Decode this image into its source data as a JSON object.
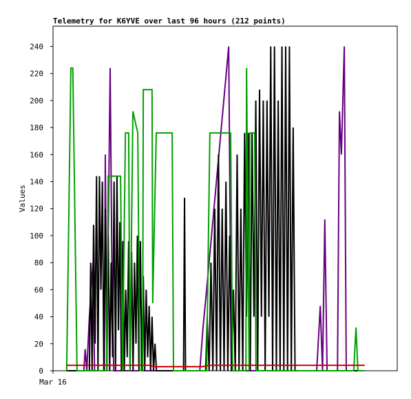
{
  "chart_data": {
    "type": "line",
    "title": "Telemetry for K6YVE over last 96 hours (212 points)",
    "y_label": "Values",
    "xlim": [
      0,
      106
    ],
    "xticks": [
      {
        "value": 0,
        "label": "Mar 16"
      }
    ],
    "ylim": [
      0,
      255
    ],
    "yticks": [
      0,
      20,
      40,
      60,
      80,
      100,
      120,
      140,
      160,
      180,
      200,
      220,
      240
    ],
    "grid": false,
    "series": [
      {
        "color": "#660080",
        "x": [
          9.5,
          9.9,
          10.4,
          11.2,
          12.3,
          12.8,
          15.8,
          16.1,
          16.6,
          17.0,
          17.6,
          18.2,
          18.7,
          45.2,
          46.2,
          47.3,
          54.1,
          54.9,
          81.2,
          82.3,
          83.0,
          83.7,
          84.4,
          87.6,
          88.2,
          88.8,
          89.7,
          90.3
        ],
        "values": [
          0,
          16,
          0,
          40,
          80,
          0,
          0,
          160,
          0,
          100,
          224,
          60,
          0,
          0,
          32,
          60,
          240,
          0,
          0,
          48,
          0,
          112,
          0,
          0,
          192,
          160,
          240,
          0
        ]
      },
      {
        "color": "#000000",
        "x": [
          4.2,
          11.2,
          11.6,
          12.05,
          12.5,
          12.95,
          13.4,
          13.85,
          14.3,
          14.75,
          15.2,
          15.65,
          16.1,
          16.55,
          17.0,
          17.45,
          17.9,
          18.35,
          18.8,
          19.25,
          19.7,
          20.15,
          20.6,
          21.05,
          21.5,
          21.95,
          22.4,
          22.85,
          23.3,
          23.75,
          24.2,
          24.65,
          25.1,
          25.55,
          26.0,
          26.45,
          26.9,
          27.35,
          27.8,
          28.25,
          28.7,
          29.15,
          29.6,
          30.05,
          30.5,
          30.95,
          31.4,
          31.85,
          40.2,
          40.5,
          40.8,
          47.0,
          47.5,
          48.08,
          48.65,
          49.23,
          49.8,
          50.38,
          50.95,
          51.53,
          52.1,
          52.68,
          53.25,
          53.83,
          54.4,
          54.98,
          55.55,
          56.13,
          56.7,
          57.28,
          57.85,
          58.43,
          59.0,
          59.58,
          60.15,
          60.73,
          61.3,
          61.88,
          62.45,
          63.03,
          63.6,
          64.18,
          64.75,
          65.33,
          65.9,
          66.48,
          67.05,
          67.63,
          68.2,
          68.78,
          69.35,
          69.93,
          70.5,
          71.08,
          71.65,
          72.23,
          72.8,
          73.38,
          73.95,
          74.53,
          96.0
        ],
        "values": [
          0,
          0,
          80,
          0,
          108,
          20,
          144,
          0,
          144,
          60,
          140,
          0,
          120,
          20,
          100,
          0,
          80,
          10,
          140,
          0,
          144,
          30,
          110,
          0,
          96,
          0,
          60,
          10,
          96,
          0,
          88,
          0,
          80,
          20,
          100,
          0,
          96,
          0,
          70,
          0,
          60,
          10,
          48,
          0,
          40,
          0,
          20,
          0,
          0,
          128,
          0,
          0,
          40,
          0,
          80,
          0,
          120,
          0,
          160,
          0,
          120,
          0,
          140,
          0,
          100,
          0,
          60,
          0,
          160,
          0,
          120,
          0,
          176,
          40,
          176,
          0,
          176,
          40,
          200,
          0,
          208,
          40,
          200,
          0,
          200,
          40,
          240,
          0,
          240,
          0,
          200,
          0,
          240,
          0,
          240,
          0,
          240,
          0,
          180,
          0,
          0
        ]
      },
      {
        "color": "#00a000",
        "x": [
          4.2,
          5.5,
          6.1,
          7.4,
          16.5,
          17.0,
          20.8,
          21.4,
          22.3,
          23.3,
          23.7,
          24.6,
          26.1,
          26.7,
          27.6,
          27.8,
          30.5,
          30.7,
          31.8,
          36.7,
          37.1,
          47.3,
          48.3,
          54.7,
          55.3,
          59.4,
          59.6,
          60.4,
          60.6,
          62.1,
          62.5,
          92.6,
          93.3,
          93.9,
          96.0
        ],
        "values": [
          0,
          224,
          224,
          0,
          0,
          144,
          144,
          0,
          176,
          176,
          0,
          192,
          176,
          0,
          0,
          208,
          208,
          50,
          176,
          176,
          0,
          0,
          176,
          176,
          0,
          0,
          224,
          0,
          176,
          176,
          0,
          0,
          32,
          0,
          0
        ]
      },
      {
        "color": "#cc0000",
        "x": [
          4.2,
          30.0,
          31.0,
          46.0,
          48.0,
          96.0
        ],
        "values": [
          4,
          4,
          3,
          3,
          4,
          4
        ]
      }
    ]
  }
}
